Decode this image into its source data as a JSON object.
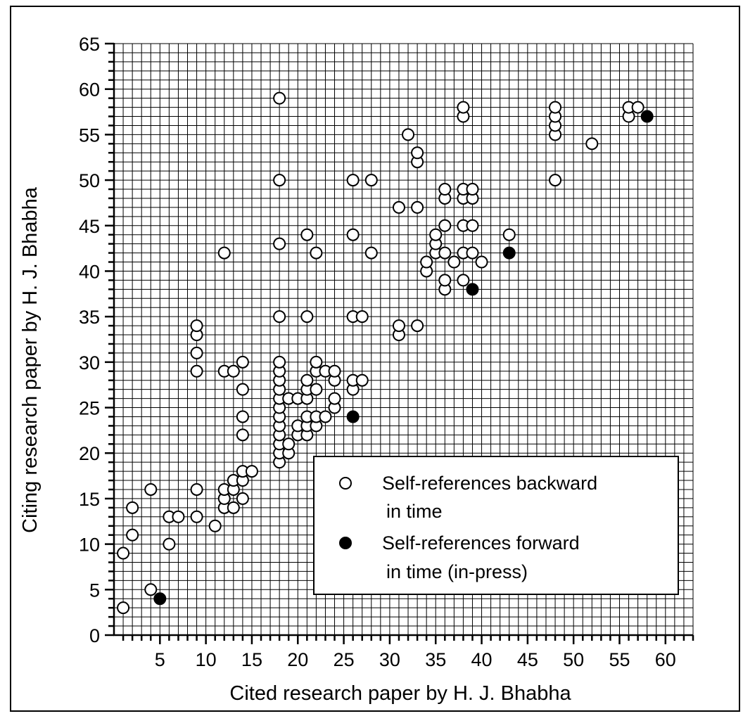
{
  "chart_data": {
    "type": "scatter",
    "title": "",
    "xlabel": "Cited research paper by H. J. Bhabha",
    "ylabel": "Citing research paper by H. J. Bhabha",
    "xlim": [
      0,
      63
    ],
    "ylim": [
      0,
      65
    ],
    "xticks": [
      5,
      10,
      15,
      20,
      25,
      30,
      35,
      40,
      45,
      50,
      55,
      60
    ],
    "yticks": [
      0,
      5,
      10,
      15,
      20,
      25,
      30,
      35,
      40,
      45,
      50,
      55,
      60,
      65
    ],
    "grid": true,
    "legend_position": "bottom-right",
    "series": [
      {
        "name": "Self-references backward in time",
        "legend_lines": [
          "Self-references backward",
          "in time"
        ],
        "marker": "open-circle",
        "color": "#000000",
        "points": [
          [
            1,
            3
          ],
          [
            1,
            9
          ],
          [
            2,
            11
          ],
          [
            2,
            14
          ],
          [
            4,
            5
          ],
          [
            4,
            16
          ],
          [
            6,
            10
          ],
          [
            6,
            13
          ],
          [
            7,
            13
          ],
          [
            9,
            13
          ],
          [
            9,
            16
          ],
          [
            9,
            29
          ],
          [
            9,
            31
          ],
          [
            9,
            33
          ],
          [
            9,
            34
          ],
          [
            11,
            12
          ],
          [
            12,
            14
          ],
          [
            12,
            15
          ],
          [
            12,
            16
          ],
          [
            12,
            29
          ],
          [
            12,
            42
          ],
          [
            13,
            14
          ],
          [
            13,
            16
          ],
          [
            13,
            17
          ],
          [
            13,
            29
          ],
          [
            14,
            15
          ],
          [
            14,
            17
          ],
          [
            14,
            18
          ],
          [
            14,
            22
          ],
          [
            14,
            24
          ],
          [
            14,
            27
          ],
          [
            14,
            30
          ],
          [
            15,
            18
          ],
          [
            18,
            19
          ],
          [
            18,
            20
          ],
          [
            18,
            21
          ],
          [
            18,
            22
          ],
          [
            18,
            23
          ],
          [
            18,
            24
          ],
          [
            18,
            25
          ],
          [
            18,
            26
          ],
          [
            18,
            27
          ],
          [
            18,
            28
          ],
          [
            18,
            29
          ],
          [
            18,
            30
          ],
          [
            18,
            35
          ],
          [
            18,
            43
          ],
          [
            18,
            50
          ],
          [
            18,
            59
          ],
          [
            19,
            20
          ],
          [
            19,
            21
          ],
          [
            19,
            26
          ],
          [
            20,
            22
          ],
          [
            20,
            23
          ],
          [
            20,
            26
          ],
          [
            21,
            22
          ],
          [
            21,
            23
          ],
          [
            21,
            24
          ],
          [
            21,
            26
          ],
          [
            21,
            27
          ],
          [
            21,
            28
          ],
          [
            21,
            35
          ],
          [
            21,
            44
          ],
          [
            22,
            23
          ],
          [
            22,
            24
          ],
          [
            22,
            27
          ],
          [
            22,
            29
          ],
          [
            22,
            30
          ],
          [
            22,
            42
          ],
          [
            23,
            24
          ],
          [
            23,
            29
          ],
          [
            24,
            25
          ],
          [
            24,
            26
          ],
          [
            24,
            28
          ],
          [
            24,
            29
          ],
          [
            26,
            27
          ],
          [
            26,
            28
          ],
          [
            26,
            35
          ],
          [
            26,
            44
          ],
          [
            26,
            50
          ],
          [
            27,
            28
          ],
          [
            27,
            35
          ],
          [
            28,
            42
          ],
          [
            28,
            50
          ],
          [
            31,
            33
          ],
          [
            31,
            34
          ],
          [
            31,
            47
          ],
          [
            32,
            55
          ],
          [
            33,
            34
          ],
          [
            33,
            47
          ],
          [
            33,
            52
          ],
          [
            33,
            53
          ],
          [
            34,
            40
          ],
          [
            34,
            41
          ],
          [
            35,
            42
          ],
          [
            35,
            43
          ],
          [
            35,
            44
          ],
          [
            36,
            38
          ],
          [
            36,
            39
          ],
          [
            36,
            42
          ],
          [
            36,
            45
          ],
          [
            36,
            48
          ],
          [
            36,
            49
          ],
          [
            37,
            41
          ],
          [
            38,
            39
          ],
          [
            38,
            42
          ],
          [
            38,
            45
          ],
          [
            38,
            48
          ],
          [
            38,
            49
          ],
          [
            38,
            57
          ],
          [
            38,
            58
          ],
          [
            39,
            42
          ],
          [
            39,
            45
          ],
          [
            39,
            48
          ],
          [
            39,
            49
          ],
          [
            40,
            41
          ],
          [
            43,
            44
          ],
          [
            48,
            50
          ],
          [
            48,
            55
          ],
          [
            48,
            56
          ],
          [
            48,
            57
          ],
          [
            48,
            58
          ],
          [
            52,
            54
          ],
          [
            56,
            57
          ],
          [
            56,
            58
          ],
          [
            57,
            58
          ]
        ]
      },
      {
        "name": "Self-references forward in time (in-press)",
        "legend_lines": [
          "Self-references forward",
          "in time (in-press)"
        ],
        "marker": "filled-circle",
        "color": "#000000",
        "points": [
          [
            5,
            4
          ],
          [
            26,
            24
          ],
          [
            39,
            38
          ],
          [
            43,
            42
          ],
          [
            58,
            57
          ]
        ]
      }
    ]
  }
}
